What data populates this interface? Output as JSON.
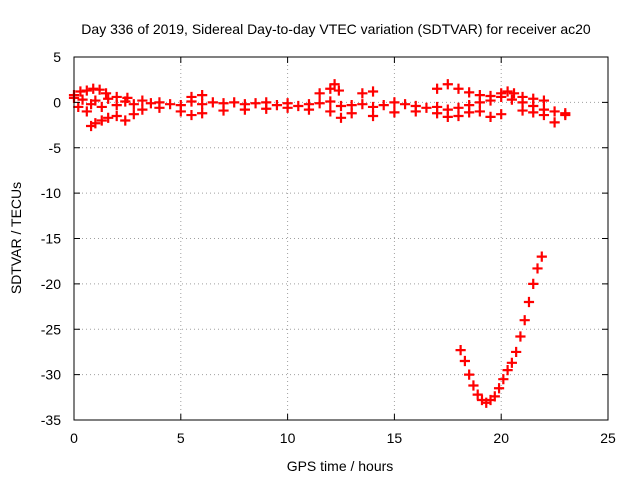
{
  "chart_data": {
    "type": "scatter",
    "title": "Day 336 of 2019, Sidereal Day-to-day VTEC variation (SDTVAR) for receiver ac20",
    "xlabel": "GPS time / hours",
    "ylabel": "SDTVAR / TECUs",
    "xlim": [
      0,
      25
    ],
    "ylim": [
      -35,
      5
    ],
    "xticks": [
      0,
      5,
      10,
      15,
      20,
      25
    ],
    "yticks": [
      -35,
      -30,
      -25,
      -20,
      -15,
      -10,
      -5,
      0,
      5
    ],
    "grid": true,
    "legend": "none",
    "marker": "plus",
    "color": "#ff0000",
    "series": [
      {
        "name": "main-trace",
        "x": [
          0.0,
          0.2,
          0.4,
          0.6,
          0.8,
          1.0,
          1.3,
          1.6,
          2.0,
          2.4,
          2.8,
          3.2,
          3.6,
          4.0,
          4.5,
          5.0,
          5.5,
          6.0,
          6.5,
          7.0,
          7.5,
          8.0,
          8.5,
          9.0,
          9.5,
          10.0,
          10.5,
          11.0,
          11.5,
          12.0,
          12.5,
          13.0,
          13.5,
          14.0,
          14.5,
          15.0,
          15.5,
          16.0,
          16.5,
          17.0,
          17.5,
          18.0,
          18.5,
          19.0,
          19.5,
          20.0,
          20.5,
          21.0,
          21.5,
          22.0,
          22.5,
          23.0
        ],
        "y": [
          0.5,
          -0.5,
          0.3,
          -1.0,
          -0.2,
          0.2,
          -0.5,
          0.4,
          -0.3,
          0.1,
          -0.2,
          0.2,
          -0.1,
          0.0,
          -0.2,
          -0.3,
          0.1,
          -0.2,
          0.0,
          -0.1,
          0.0,
          -0.2,
          -0.1,
          0.0,
          -0.3,
          -0.1,
          -0.4,
          -0.2,
          -0.1,
          0.1,
          -0.4,
          -0.3,
          -0.2,
          -0.5,
          -0.3,
          0.0,
          -0.2,
          -0.4,
          -0.6,
          -0.5,
          -0.8,
          -0.6,
          -0.3,
          0.0,
          0.2,
          0.6,
          0.3,
          0.0,
          -0.4,
          -0.8,
          -1.0,
          -1.2
        ]
      },
      {
        "name": "lower-band",
        "x": [
          0.8,
          1.0,
          1.3,
          1.6,
          2.0,
          2.4,
          2.8,
          3.2,
          4.0,
          5.0,
          5.5,
          6.0,
          7.0,
          8.0,
          9.0,
          10.0,
          11.0,
          12.0,
          12.5,
          13.0,
          14.0,
          15.0,
          16.0,
          17.0,
          17.5,
          18.0,
          18.5,
          19.0,
          19.5,
          20.0,
          21.0,
          21.5,
          22.0,
          22.5,
          23.0
        ],
        "y": [
          -2.6,
          -2.3,
          -2.0,
          -1.7,
          -1.5,
          -2.0,
          -1.3,
          -0.8,
          -0.6,
          -1.0,
          -1.4,
          -1.2,
          -0.9,
          -0.8,
          -0.7,
          -0.6,
          -0.8,
          -1.0,
          -1.7,
          -1.2,
          -1.5,
          -1.1,
          -1.0,
          -1.2,
          -1.6,
          -1.5,
          -1.1,
          -1.0,
          -1.6,
          -1.3,
          -0.9,
          -1.1,
          -1.4,
          -2.2,
          -1.4
        ]
      },
      {
        "name": "upper-band",
        "x": [
          0.0,
          0.3,
          0.6,
          0.9,
          1.2,
          1.5,
          2.0,
          2.5,
          5.5,
          6.0,
          11.5,
          12.0,
          12.2,
          12.4,
          13.5,
          14.0,
          17.0,
          17.5,
          18.0,
          18.5,
          19.0,
          19.5,
          20.0,
          20.3,
          20.6,
          21.0,
          21.5,
          22.0
        ],
        "y": [
          0.8,
          1.2,
          1.3,
          1.5,
          1.4,
          1.0,
          0.6,
          0.5,
          0.6,
          0.8,
          1.0,
          1.5,
          2.0,
          1.3,
          1.0,
          1.2,
          1.5,
          2.0,
          1.5,
          1.1,
          0.8,
          0.7,
          1.0,
          1.2,
          1.0,
          0.6,
          0.4,
          0.2
        ]
      },
      {
        "name": "v-shaped-dip",
        "x": [
          18.1,
          18.3,
          18.5,
          18.7,
          18.9,
          19.1,
          19.3,
          19.5,
          19.7,
          19.9,
          20.1,
          20.3,
          20.5,
          20.7,
          20.9,
          21.1,
          21.3,
          21.5,
          21.7,
          21.9
        ],
        "y": [
          -27.3,
          -28.5,
          -30.0,
          -31.2,
          -32.2,
          -32.8,
          -33.1,
          -32.8,
          -32.4,
          -31.5,
          -30.5,
          -29.5,
          -28.7,
          -27.5,
          -25.8,
          -24.0,
          -22.0,
          -20.0,
          -18.3,
          -17.0
        ]
      }
    ]
  }
}
